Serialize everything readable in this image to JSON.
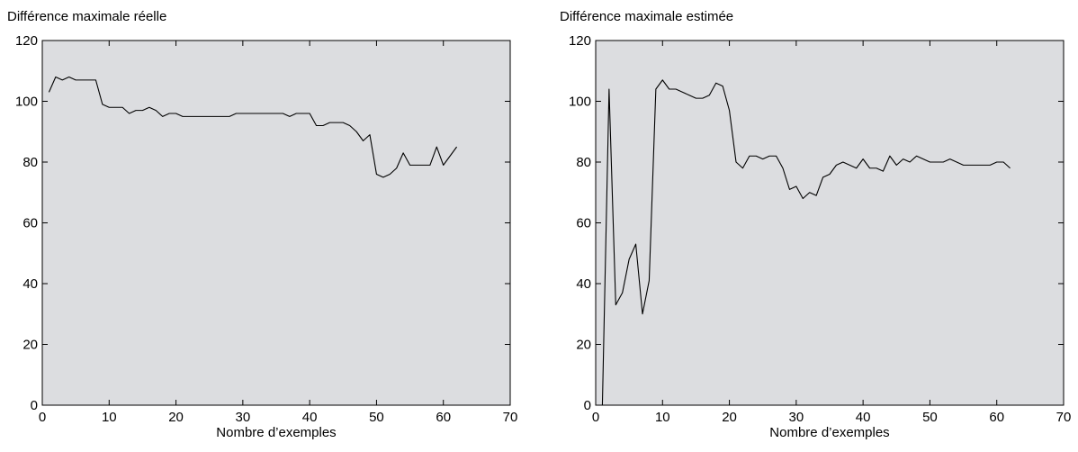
{
  "chart_data": [
    {
      "type": "line",
      "title": "Différence maximale réelle",
      "xlabel": "Nombre d’exemples",
      "ylabel": "",
      "xlim": [
        0,
        70
      ],
      "ylim": [
        0,
        120
      ],
      "xticks": [
        0,
        10,
        20,
        30,
        40,
        50,
        60,
        70
      ],
      "yticks": [
        0,
        20,
        40,
        60,
        80,
        100,
        120
      ],
      "grid": false,
      "x": [
        1,
        2,
        3,
        4,
        5,
        6,
        7,
        8,
        9,
        10,
        11,
        12,
        13,
        14,
        15,
        16,
        17,
        18,
        19,
        20,
        21,
        22,
        23,
        24,
        25,
        26,
        27,
        28,
        29,
        30,
        31,
        32,
        33,
        34,
        35,
        36,
        37,
        38,
        39,
        40,
        41,
        42,
        43,
        44,
        45,
        46,
        47,
        48,
        49,
        50,
        51,
        52,
        53,
        54,
        55,
        56,
        57,
        58,
        59,
        60,
        61,
        62
      ],
      "series": [
        {
          "values": [
            103,
            108,
            107,
            108,
            107,
            107,
            107,
            107,
            99,
            98,
            98,
            98,
            96,
            97,
            97,
            98,
            97,
            95,
            96,
            96,
            95,
            95,
            95,
            95,
            95,
            95,
            95,
            95,
            96,
            96,
            96,
            96,
            96,
            96,
            96,
            96,
            95,
            96,
            96,
            96,
            92,
            92,
            93,
            93,
            93,
            92,
            90,
            87,
            89,
            76,
            75,
            76,
            78,
            83,
            79,
            79,
            79,
            79,
            85,
            79,
            82,
            85
          ]
        }
      ]
    },
    {
      "type": "line",
      "title": "Différence maximale estimée",
      "xlabel": "Nombre d’exemples",
      "ylabel": "",
      "xlim": [
        0,
        70
      ],
      "ylim": [
        0,
        120
      ],
      "xticks": [
        0,
        10,
        20,
        30,
        40,
        50,
        60,
        70
      ],
      "yticks": [
        0,
        20,
        40,
        60,
        80,
        100,
        120
      ],
      "grid": false,
      "x": [
        0,
        1,
        2,
        3,
        4,
        5,
        6,
        7,
        8,
        9,
        10,
        11,
        12,
        13,
        14,
        15,
        16,
        17,
        18,
        19,
        20,
        21,
        22,
        23,
        24,
        25,
        26,
        27,
        28,
        29,
        30,
        31,
        32,
        33,
        34,
        35,
        36,
        37,
        38,
        39,
        40,
        41,
        42,
        43,
        44,
        45,
        46,
        47,
        48,
        49,
        50,
        51,
        52,
        53,
        54,
        55,
        56,
        57,
        58,
        59,
        60,
        61,
        62
      ],
      "series": [
        {
          "values": [
            0,
            0,
            104,
            33,
            37,
            48,
            53,
            30,
            41,
            104,
            107,
            104,
            104,
            103,
            102,
            101,
            101,
            102,
            106,
            105,
            97,
            80,
            78,
            82,
            82,
            81,
            82,
            82,
            78,
            71,
            72,
            68,
            70,
            69,
            75,
            76,
            79,
            80,
            79,
            78,
            81,
            78,
            78,
            77,
            82,
            79,
            81,
            80,
            82,
            81,
            80,
            80,
            80,
            81,
            80,
            79,
            79,
            79,
            79,
            79,
            80,
            80,
            78
          ]
        }
      ]
    }
  ]
}
